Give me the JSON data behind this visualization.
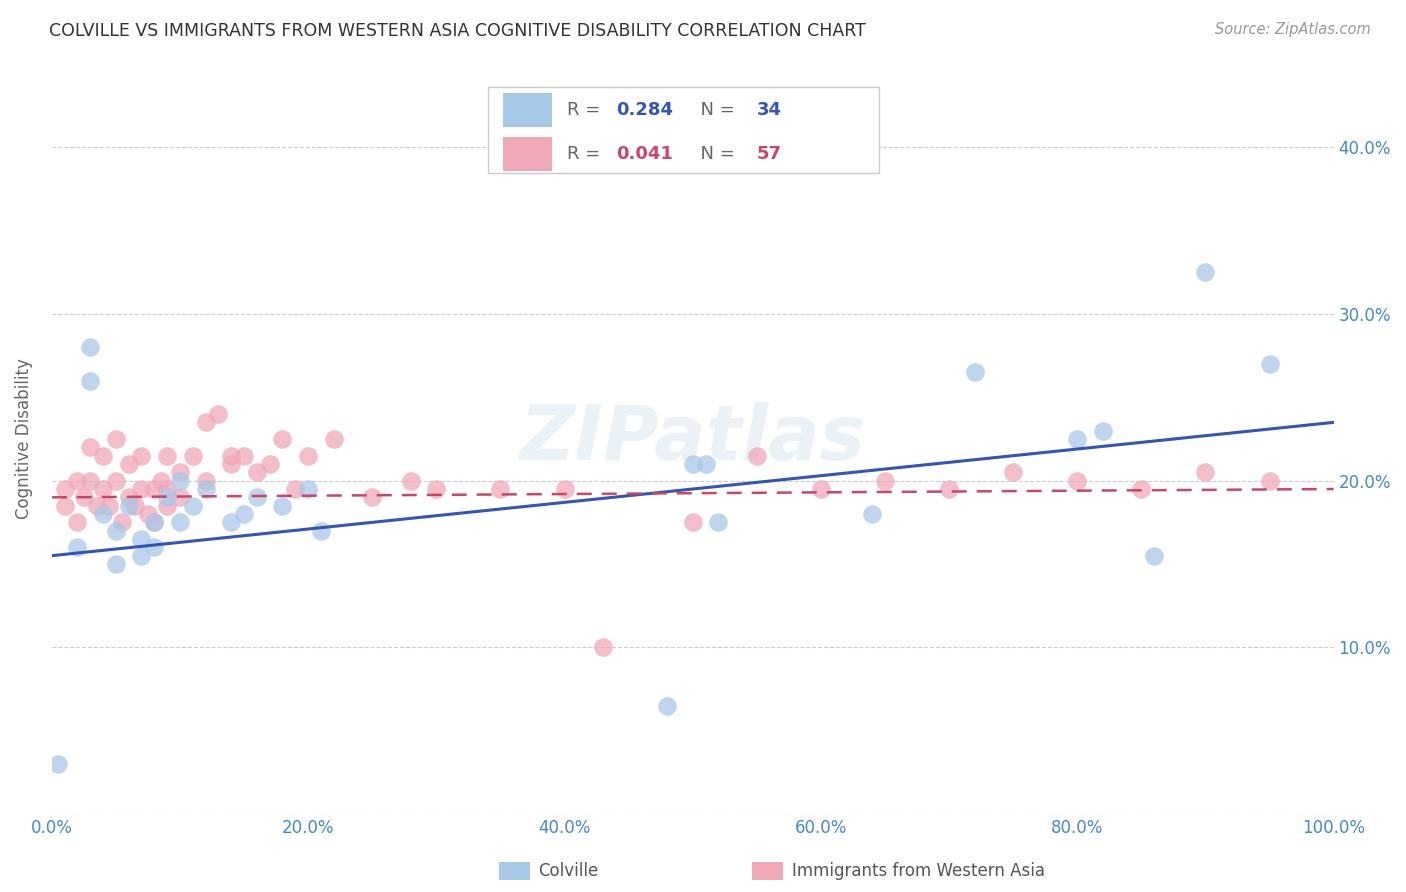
{
  "title": "COLVILLE VS IMMIGRANTS FROM WESTERN ASIA COGNITIVE DISABILITY CORRELATION CHART",
  "source": "Source: ZipAtlas.com",
  "ylabel": "Cognitive Disability",
  "xlim": [
    0,
    1.0
  ],
  "ylim": [
    0,
    0.45
  ],
  "xtick_vals": [
    0.0,
    0.2,
    0.4,
    0.6,
    0.8,
    1.0
  ],
  "xtick_labels": [
    "0.0%",
    "20.0%",
    "40.0%",
    "60.0%",
    "80.0%",
    "100.0%"
  ],
  "ytick_vals": [
    0.0,
    0.1,
    0.2,
    0.3,
    0.4
  ],
  "ytick_labels": [
    "",
    "10.0%",
    "20.0%",
    "30.0%",
    "40.0%"
  ],
  "colville_color": "#a8c8e8",
  "immigrants_color": "#f0a8b8",
  "colville_line_color": "#3355bb",
  "immigrants_line_color": "#cc4466",
  "R_colville": 0.284,
  "N_colville": 34,
  "R_immigrants": 0.041,
  "N_immigrants": 57,
  "background_color": "#ffffff",
  "grid_color": "#cccccc",
  "title_color": "#333333",
  "axis_color": "#4488CC",
  "watermark": "ZIPatlas",
  "colville_scatter_x": [
    0.005,
    0.02,
    0.03,
    0.03,
    0.04,
    0.05,
    0.05,
    0.06,
    0.07,
    0.07,
    0.08,
    0.08,
    0.09,
    0.1,
    0.1,
    0.11,
    0.12,
    0.14,
    0.15,
    0.16,
    0.18,
    0.2,
    0.21,
    0.5,
    0.51,
    0.52,
    0.64,
    0.72,
    0.8,
    0.82,
    0.86,
    0.9,
    0.95,
    0.48
  ],
  "colville_scatter_y": [
    0.03,
    0.16,
    0.28,
    0.26,
    0.18,
    0.17,
    0.15,
    0.185,
    0.165,
    0.155,
    0.175,
    0.16,
    0.19,
    0.2,
    0.175,
    0.185,
    0.195,
    0.175,
    0.18,
    0.19,
    0.185,
    0.195,
    0.17,
    0.21,
    0.21,
    0.175,
    0.18,
    0.265,
    0.225,
    0.23,
    0.155,
    0.325,
    0.27,
    0.065
  ],
  "immigrants_scatter_x": [
    0.01,
    0.01,
    0.02,
    0.02,
    0.025,
    0.03,
    0.03,
    0.035,
    0.04,
    0.04,
    0.045,
    0.05,
    0.05,
    0.055,
    0.06,
    0.06,
    0.065,
    0.07,
    0.07,
    0.075,
    0.08,
    0.08,
    0.085,
    0.09,
    0.09,
    0.09,
    0.1,
    0.1,
    0.11,
    0.12,
    0.12,
    0.13,
    0.14,
    0.14,
    0.15,
    0.16,
    0.17,
    0.18,
    0.19,
    0.2,
    0.22,
    0.25,
    0.28,
    0.3,
    0.35,
    0.4,
    0.43,
    0.5,
    0.55,
    0.6,
    0.65,
    0.7,
    0.75,
    0.8,
    0.85,
    0.9,
    0.95
  ],
  "immigrants_scatter_y": [
    0.185,
    0.195,
    0.175,
    0.2,
    0.19,
    0.2,
    0.22,
    0.185,
    0.195,
    0.215,
    0.185,
    0.2,
    0.225,
    0.175,
    0.19,
    0.21,
    0.185,
    0.195,
    0.215,
    0.18,
    0.195,
    0.175,
    0.2,
    0.195,
    0.185,
    0.215,
    0.205,
    0.19,
    0.215,
    0.235,
    0.2,
    0.24,
    0.21,
    0.215,
    0.215,
    0.205,
    0.21,
    0.225,
    0.195,
    0.215,
    0.225,
    0.19,
    0.2,
    0.195,
    0.195,
    0.195,
    0.1,
    0.175,
    0.215,
    0.195,
    0.2,
    0.195,
    0.205,
    0.2,
    0.195,
    0.205,
    0.2
  ],
  "colville_trend": [
    0.155,
    0.235
  ],
  "immigrants_trend": [
    0.19,
    0.195
  ]
}
